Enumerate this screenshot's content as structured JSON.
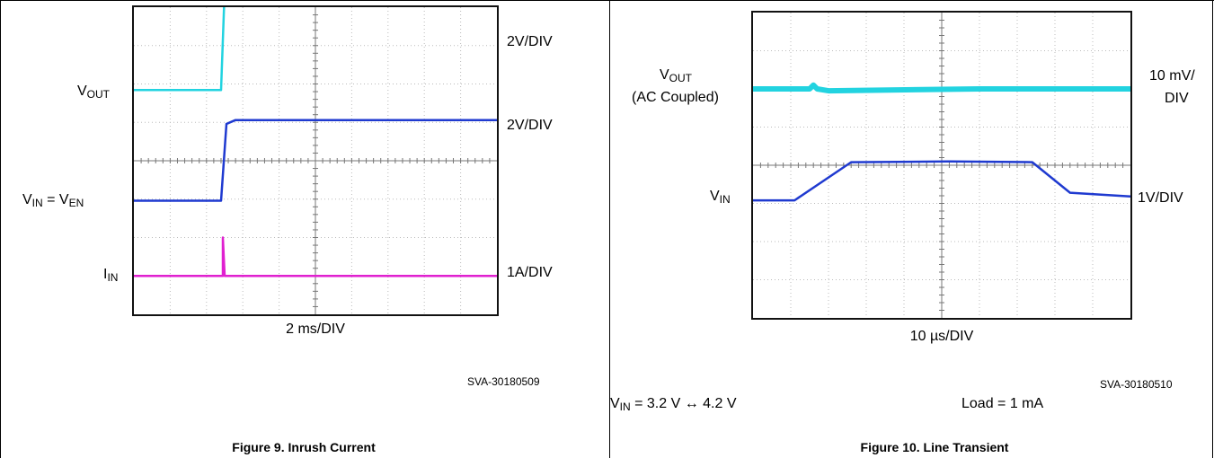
{
  "fig9": {
    "caption": "Figure 9. Inrush Current",
    "timebase": "2 ms/DIV",
    "code": "SVA-30180509",
    "left": {
      "vout_main": "V",
      "vout_sub": "OUT",
      "vin_v1": "V",
      "vin_s1": "IN",
      "vin_eq": " = V",
      "vin_s2": "EN",
      "iin_main": "I",
      "iin_sub": "IN"
    },
    "scales": [
      "2V/DIV",
      "2V/DIV",
      "1A/DIV"
    ]
  },
  "fig10": {
    "caption": "Figure 10. Line Transient",
    "timebase": "10 µs/DIV",
    "code": "SVA-30180510",
    "left": {
      "vout_main": "V",
      "vout_sub": "OUT",
      "vout_note": "(AC Coupled)",
      "vin_main": "V",
      "vin_sub": "IN"
    },
    "scales": [
      "10 mV/",
      "DIV",
      "1V/DIV"
    ],
    "cond_main": "V",
    "cond_sub": "IN",
    "cond_rest": " = 3.2 V ↔ 4.2 V",
    "load": "Load = 1 mA"
  },
  "chart_data": [
    {
      "type": "line",
      "title": "Figure 9. Inrush Current",
      "xlabel": "2 ms/DIV",
      "x_unit": "ms",
      "xlim": [
        0,
        20
      ],
      "series": [
        {
          "name": "VOUT",
          "scale": "2V/DIV",
          "color": "#22d3e0",
          "x": [
            0,
            4.8,
            5.0,
            20
          ],
          "y_div": [
            0,
            0,
            2.6,
            2.6
          ]
        },
        {
          "name": "VIN = VEN",
          "scale": "2V/DIV",
          "color": "#1f3ad0",
          "x": [
            0,
            4.8,
            5.1,
            5.6,
            20
          ],
          "y_div": [
            0,
            0,
            2.0,
            2.1,
            2.1
          ]
        },
        {
          "name": "IIN",
          "scale": "1A/DIV",
          "color": "#e020d0",
          "x": [
            0,
            4.9,
            4.9,
            5.0,
            20
          ],
          "y_div": [
            0,
            0,
            1.0,
            0,
            0
          ]
        }
      ]
    },
    {
      "type": "line",
      "title": "Figure 10. Line Transient",
      "xlabel": "10 µs/DIV",
      "x_unit": "µs",
      "xlim": [
        0,
        100
      ],
      "series": [
        {
          "name": "VOUT (AC Coupled)",
          "scale": "10 mV/DIV",
          "color": "#22d3e0",
          "x": [
            0,
            15,
            16,
            17,
            20,
            60,
            100
          ],
          "y_div": [
            0,
            0,
            0.1,
            0,
            -0.05,
            0,
            0
          ]
        },
        {
          "name": "VIN",
          "scale": "1V/DIV",
          "color": "#1f3ad0",
          "x": [
            0,
            11,
            26,
            52,
            74,
            84,
            100
          ],
          "y_div": [
            0,
            0,
            1.0,
            1.02,
            1.0,
            0.2,
            0.1
          ]
        }
      ]
    }
  ]
}
